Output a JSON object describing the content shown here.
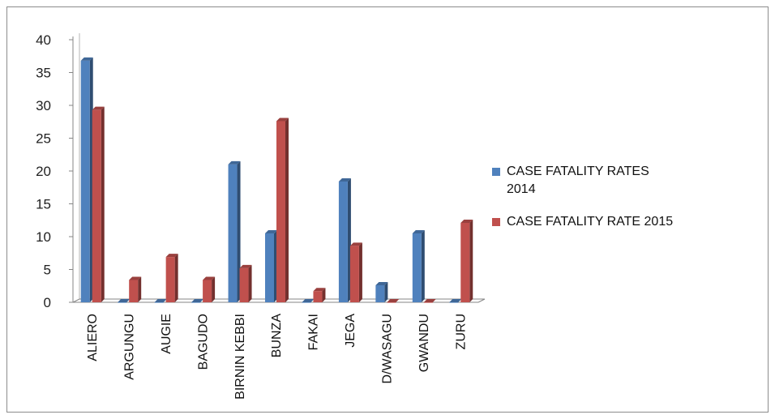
{
  "chart_data": {
    "type": "bar",
    "title": "",
    "xlabel": "",
    "ylabel": "",
    "ylim": [
      0,
      40
    ],
    "yticks": [
      0,
      5,
      10,
      15,
      20,
      25,
      30,
      35,
      40
    ],
    "grid": false,
    "legend_position": "right",
    "categories": [
      "ALIERO",
      "ARGUNGU",
      "AUGIE",
      "BAGUDO",
      "BIRNIN KEBBI",
      "BUNZA",
      "FAKAI",
      "JEGA",
      "D/WASAGU",
      "GWANDU",
      "ZURU"
    ],
    "series": [
      {
        "name": "CASE FATALITY RATES 2014",
        "name_lines": [
          "CASE FATALITY RATES",
          "2014"
        ],
        "color": "#4f81bd",
        "values": [
          36.8,
          0,
          0,
          0,
          21,
          10.5,
          0,
          18.4,
          2.6,
          10.5,
          0
        ]
      },
      {
        "name": "CASE FATALITY RATE 2015",
        "name_lines": [
          "CASE FATALITY RATE 2015"
        ],
        "color": "#c0504d",
        "values": [
          29.3,
          3.4,
          6.9,
          3.4,
          5.2,
          27.6,
          1.7,
          8.6,
          0,
          0,
          12.1
        ]
      }
    ]
  }
}
